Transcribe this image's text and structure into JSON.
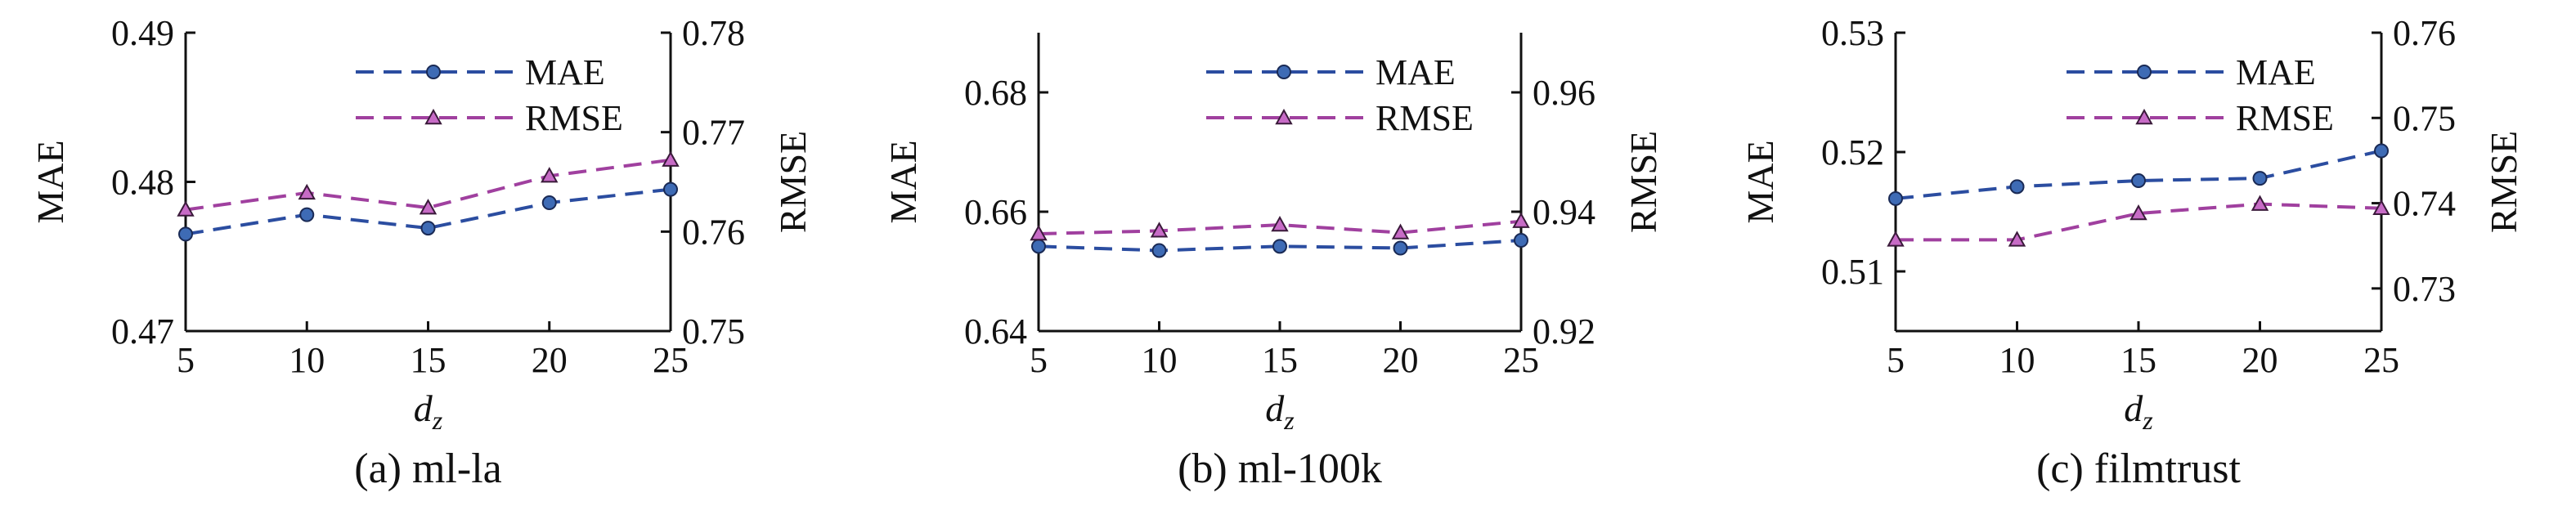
{
  "chart_data": [
    {
      "type": "line",
      "caption": "(a) ml-la",
      "xlabel_main": "d",
      "xlabel_sub": "z",
      "ylabel_left": "MAE",
      "ylabel_right": "RMSE",
      "x": [
        5,
        10,
        15,
        20,
        25
      ],
      "x_ticks": [
        "5",
        "10",
        "15",
        "20",
        "25"
      ],
      "ylim_left": [
        0.47,
        0.49
      ],
      "ylim_right": [
        0.75,
        0.78
      ],
      "y_ticks_left": [
        "0.47",
        "0.48",
        "0.49"
      ],
      "y_ticks_right": [
        "0.75",
        "0.76",
        "0.77",
        "0.78"
      ],
      "series": [
        {
          "name": "MAE",
          "axis": "left",
          "marker": "circle",
          "color": "#2b4da0",
          "values": [
            0.4765,
            0.4778,
            0.4769,
            0.4786,
            0.4795
          ]
        },
        {
          "name": "RMSE",
          "axis": "right",
          "marker": "triangle",
          "color": "#a0409f",
          "values": [
            0.7622,
            0.7639,
            0.7624,
            0.7656,
            0.7672
          ]
        }
      ],
      "legend_position": "top-right"
    },
    {
      "type": "line",
      "caption": "(b) ml-100k",
      "xlabel_main": "d",
      "xlabel_sub": "z",
      "ylabel_left": "MAE",
      "ylabel_right": "RMSE",
      "x": [
        5,
        10,
        15,
        20,
        25
      ],
      "x_ticks": [
        "5",
        "10",
        "15",
        "20",
        "25"
      ],
      "ylim_left": [
        0.64,
        0.69
      ],
      "ylim_right": [
        0.92,
        0.97
      ],
      "y_ticks_left": [
        "0.64",
        "0.66",
        "0.68"
      ],
      "y_ticks_right": [
        "0.92",
        "0.94",
        "0.96"
      ],
      "series": [
        {
          "name": "MAE",
          "axis": "left",
          "marker": "circle",
          "color": "#2b4da0",
          "values": [
            0.6542,
            0.6535,
            0.6542,
            0.6539,
            0.6552
          ]
        },
        {
          "name": "RMSE",
          "axis": "right",
          "marker": "triangle",
          "color": "#a0409f",
          "values": [
            0.9363,
            0.9368,
            0.9378,
            0.9365,
            0.9384
          ]
        }
      ],
      "legend_position": "top-right"
    },
    {
      "type": "line",
      "caption": "(c) filmtrust",
      "xlabel_main": "d",
      "xlabel_sub": "z",
      "ylabel_left": "MAE",
      "ylabel_right": "RMSE",
      "x": [
        5,
        10,
        15,
        20,
        25
      ],
      "x_ticks": [
        "5",
        "10",
        "15",
        "20",
        "25"
      ],
      "ylim_left": [
        0.505,
        0.53
      ],
      "ylim_right": [
        0.725,
        0.76
      ],
      "y_ticks_left": [
        "0.51",
        "0.52",
        "0.53"
      ],
      "y_ticks_right": [
        "0.73",
        "0.74",
        "0.75",
        "0.76"
      ],
      "series": [
        {
          "name": "MAE",
          "axis": "left",
          "marker": "circle",
          "color": "#2b4da0",
          "values": [
            0.5161,
            0.5171,
            0.5176,
            0.5178,
            0.5201
          ]
        },
        {
          "name": "RMSE",
          "axis": "right",
          "marker": "triangle",
          "color": "#a0409f",
          "values": [
            0.7357,
            0.7357,
            0.7388,
            0.7399,
            0.7394
          ]
        }
      ],
      "legend_position": "top-right"
    }
  ]
}
